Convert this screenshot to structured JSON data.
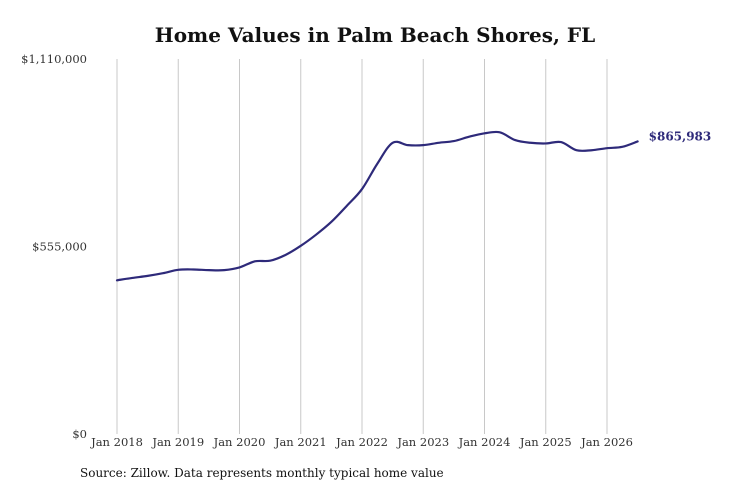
{
  "chart_data": {
    "type": "line",
    "title": "Home Values in Palm Beach Shores, FL",
    "source": "Source: Zillow. Data represents monthly typical home value",
    "ylim": [
      0,
      1110000
    ],
    "y_ticks": [
      {
        "value": 0,
        "label": "$0"
      },
      {
        "value": 555000,
        "label": "$555,000"
      },
      {
        "value": 1110000,
        "label": "$1,110,000"
      }
    ],
    "x_ticks": [
      {
        "value": "2018-01",
        "label": "Jan 2018"
      },
      {
        "value": "2019-01",
        "label": "Jan 2019"
      },
      {
        "value": "2020-01",
        "label": "Jan 2020"
      },
      {
        "value": "2021-01",
        "label": "Jan 2021"
      },
      {
        "value": "2022-01",
        "label": "Jan 2022"
      },
      {
        "value": "2023-01",
        "label": "Jan 2023"
      },
      {
        "value": "2024-01",
        "label": "Jan 2024"
      },
      {
        "value": "2025-01",
        "label": "Jan 2025"
      },
      {
        "value": "2026-01",
        "label": "Jan 2026"
      }
    ],
    "xgrid": true,
    "series": [
      {
        "color": "#2e2a7a",
        "end_label": "$865,983",
        "points": [
          {
            "x": "2018-01",
            "y": 455000
          },
          {
            "x": "2018-04",
            "y": 462000
          },
          {
            "x": "2018-07",
            "y": 468000
          },
          {
            "x": "2018-10",
            "y": 476000
          },
          {
            "x": "2019-01",
            "y": 486000
          },
          {
            "x": "2019-04",
            "y": 487000
          },
          {
            "x": "2019-07",
            "y": 485000
          },
          {
            "x": "2019-10",
            "y": 485000
          },
          {
            "x": "2020-01",
            "y": 493000
          },
          {
            "x": "2020-04",
            "y": 511000
          },
          {
            "x": "2020-07",
            "y": 513000
          },
          {
            "x": "2020-10",
            "y": 530000
          },
          {
            "x": "2021-01",
            "y": 557000
          },
          {
            "x": "2021-04",
            "y": 590000
          },
          {
            "x": "2021-07",
            "y": 628000
          },
          {
            "x": "2021-10",
            "y": 675000
          },
          {
            "x": "2022-01",
            "y": 725000
          },
          {
            "x": "2022-04",
            "y": 800000
          },
          {
            "x": "2022-07",
            "y": 862000
          },
          {
            "x": "2022-10",
            "y": 855000
          },
          {
            "x": "2023-01",
            "y": 855000
          },
          {
            "x": "2023-04",
            "y": 862000
          },
          {
            "x": "2023-07",
            "y": 867000
          },
          {
            "x": "2023-10",
            "y": 880000
          },
          {
            "x": "2024-01",
            "y": 890000
          },
          {
            "x": "2024-04",
            "y": 893000
          },
          {
            "x": "2024-07",
            "y": 870000
          },
          {
            "x": "2024-10",
            "y": 862000
          },
          {
            "x": "2025-01",
            "y": 860000
          },
          {
            "x": "2025-04",
            "y": 864000
          },
          {
            "x": "2025-07",
            "y": 840000
          },
          {
            "x": "2025-10",
            "y": 840000
          },
          {
            "x": "2026-01",
            "y": 846000
          },
          {
            "x": "2026-04",
            "y": 850000
          },
          {
            "x": "2026-07",
            "y": 865983
          }
        ]
      }
    ]
  }
}
